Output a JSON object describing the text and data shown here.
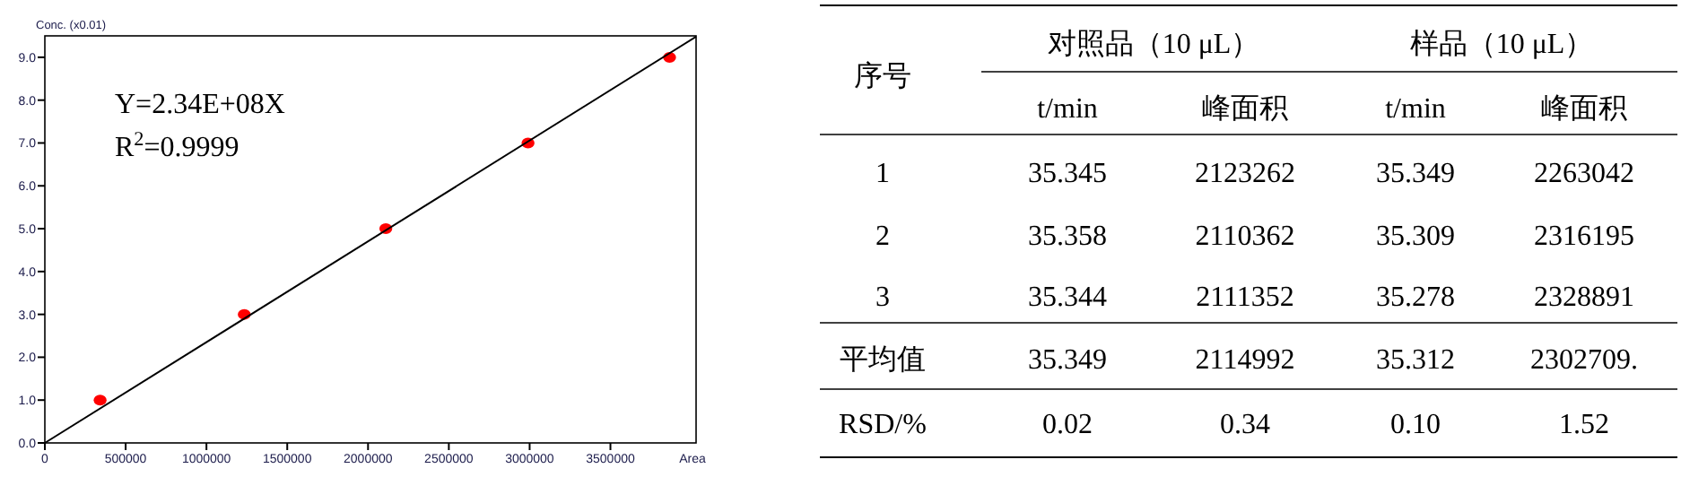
{
  "chart_data": [
    {
      "type": "scatter",
      "xlabel": "Area",
      "ylabel": "Conc. (x0.01)",
      "xlim": [
        0,
        4030000
      ],
      "ylim": [
        0,
        9.5
      ],
      "xticks": [
        0,
        500000,
        1000000,
        1500000,
        2000000,
        2500000,
        3000000,
        3500000
      ],
      "yticks": [
        {
          "value": 0,
          "label": "0.0"
        },
        {
          "value": 1,
          "label": "1.0"
        },
        {
          "value": 2,
          "label": "2.0"
        },
        {
          "value": 3,
          "label": "3.0"
        },
        {
          "value": 4,
          "label": "4.0"
        },
        {
          "value": 5,
          "label": "5.0"
        },
        {
          "value": 6,
          "label": "6.0"
        },
        {
          "value": 7,
          "label": "7.0"
        },
        {
          "value": 8,
          "label": "8.0"
        },
        {
          "value": 9,
          "label": "9.0"
        }
      ],
      "grid": false,
      "series": [
        {
          "type": "scatter",
          "marker": "circle",
          "color": "#ff0000",
          "x": [
            342000,
            1234000,
            2110000,
            2990000,
            3866000
          ],
          "values": [
            1,
            3,
            5,
            7,
            9
          ]
        },
        {
          "type": "line",
          "color": "#000000",
          "line_style": "solid",
          "x": [
            0,
            4030000
          ],
          "values": [
            0,
            9.48
          ]
        }
      ],
      "annotations": [
        "Y=2.34E+08X",
        "R$^{2}$=0.9999"
      ]
    },
    {
      "type": "other",
      "annotations": [
        "序号",
        "对照品（10 μL）",
        "样品（10 μL）",
        "t/min",
        "峰面积",
        "t/min",
        "峰面积",
        "1",
        "35.345",
        "2123262",
        "35.349",
        "2263042",
        "2",
        "35.358",
        "2110362",
        "35.309",
        "2316195",
        "3",
        "35.344",
        "2111352",
        "35.278",
        "2328891",
        "平均值",
        "35.349",
        "2114992",
        "35.312",
        "2302709.",
        "RSD/%",
        "0.02",
        "0.34",
        "0.10",
        "1.52"
      ]
    }
  ]
}
